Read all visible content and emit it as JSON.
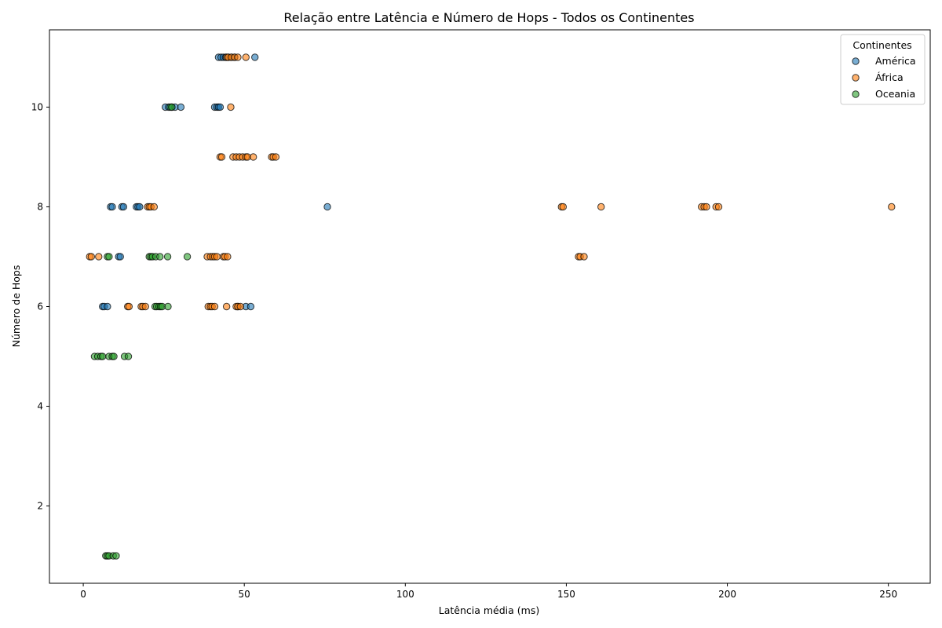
{
  "chart_data": {
    "type": "scatter",
    "title": "Relação entre Latência e Número de Hops - Todos os Continentes",
    "xlabel": "Latência média (ms)",
    "ylabel": "Número de Hops",
    "xlim": [
      -10.5,
      263
    ],
    "ylim": [
      0.45,
      11.55
    ],
    "xticks": [
      0,
      50,
      100,
      150,
      200,
      250
    ],
    "yticks": [
      2,
      4,
      6,
      8,
      10
    ],
    "grid": false,
    "legend": {
      "title": "Continentes",
      "position": "top-right"
    },
    "series": [
      {
        "name": "América",
        "color": "#1f77b4",
        "points": [
          [
            42.0,
            11
          ],
          [
            42.8,
            11
          ],
          [
            43.5,
            11
          ],
          [
            44.2,
            11
          ],
          [
            45.0,
            11
          ],
          [
            46.0,
            11
          ],
          [
            47.0,
            11
          ],
          [
            53.3,
            11
          ],
          [
            25.5,
            10
          ],
          [
            26.5,
            10
          ],
          [
            27.5,
            10
          ],
          [
            28.5,
            10
          ],
          [
            30.3,
            10
          ],
          [
            40.8,
            10
          ],
          [
            41.5,
            10
          ],
          [
            42.0,
            10
          ],
          [
            42.5,
            10
          ],
          [
            8.5,
            8
          ],
          [
            9.0,
            8
          ],
          [
            12.0,
            8
          ],
          [
            12.5,
            8
          ],
          [
            16.5,
            8
          ],
          [
            17.0,
            8
          ],
          [
            17.5,
            8
          ],
          [
            75.8,
            8
          ],
          [
            11.0,
            7
          ],
          [
            11.5,
            7
          ],
          [
            6.0,
            6
          ],
          [
            6.5,
            6
          ],
          [
            7.5,
            6
          ],
          [
            48.0,
            6
          ],
          [
            50.5,
            6
          ],
          [
            52.0,
            6
          ]
        ]
      },
      {
        "name": "África",
        "color": "#ff7f0e",
        "points": [
          [
            44.5,
            11
          ],
          [
            45.0,
            11
          ],
          [
            46.0,
            11
          ],
          [
            47.0,
            11
          ],
          [
            48.0,
            11
          ],
          [
            50.5,
            11
          ],
          [
            45.8,
            10
          ],
          [
            42.5,
            9
          ],
          [
            43.0,
            9
          ],
          [
            46.5,
            9
          ],
          [
            47.5,
            9
          ],
          [
            48.5,
            9
          ],
          [
            49.5,
            9
          ],
          [
            50.5,
            9
          ],
          [
            51.0,
            9
          ],
          [
            52.8,
            9
          ],
          [
            58.5,
            9
          ],
          [
            59.0,
            9
          ],
          [
            59.8,
            9
          ],
          [
            20.0,
            8
          ],
          [
            20.5,
            8
          ],
          [
            21.0,
            8
          ],
          [
            22.0,
            8
          ],
          [
            148.5,
            8
          ],
          [
            149.0,
            8
          ],
          [
            160.8,
            8
          ],
          [
            192.0,
            8
          ],
          [
            192.8,
            8
          ],
          [
            193.5,
            8
          ],
          [
            196.5,
            8
          ],
          [
            197.3,
            8
          ],
          [
            251.0,
            8
          ],
          [
            2.0,
            7
          ],
          [
            2.5,
            7
          ],
          [
            4.8,
            7
          ],
          [
            38.5,
            7
          ],
          [
            39.5,
            7
          ],
          [
            40.2,
            7
          ],
          [
            40.8,
            7
          ],
          [
            41.5,
            7
          ],
          [
            43.5,
            7
          ],
          [
            44.0,
            7
          ],
          [
            44.8,
            7
          ],
          [
            153.8,
            7
          ],
          [
            154.3,
            7
          ],
          [
            155.5,
            7
          ],
          [
            13.8,
            6
          ],
          [
            14.2,
            6
          ],
          [
            18.0,
            6
          ],
          [
            18.5,
            6
          ],
          [
            19.3,
            6
          ],
          [
            38.8,
            6
          ],
          [
            39.5,
            6
          ],
          [
            40.0,
            6
          ],
          [
            40.8,
            6
          ],
          [
            44.5,
            6
          ],
          [
            47.5,
            6
          ],
          [
            48.0,
            6
          ],
          [
            48.8,
            6
          ]
        ]
      },
      {
        "name": "Oceania",
        "color": "#2ca02c",
        "points": [
          [
            27.0,
            10
          ],
          [
            27.5,
            10
          ],
          [
            7.5,
            7
          ],
          [
            8.0,
            7
          ],
          [
            20.5,
            7
          ],
          [
            21.0,
            7
          ],
          [
            21.5,
            7
          ],
          [
            22.5,
            7
          ],
          [
            23.8,
            7
          ],
          [
            26.2,
            7
          ],
          [
            32.3,
            7
          ],
          [
            22.3,
            6
          ],
          [
            22.8,
            6
          ],
          [
            23.5,
            6
          ],
          [
            24.0,
            6
          ],
          [
            24.5,
            6
          ],
          [
            26.3,
            6
          ],
          [
            3.5,
            5
          ],
          [
            4.5,
            5
          ],
          [
            5.5,
            5
          ],
          [
            6.0,
            5
          ],
          [
            8.0,
            5
          ],
          [
            9.0,
            5
          ],
          [
            9.5,
            5
          ],
          [
            12.8,
            5
          ],
          [
            14.0,
            5
          ],
          [
            7.0,
            1
          ],
          [
            7.5,
            1
          ],
          [
            8.0,
            1
          ],
          [
            9.3,
            1
          ],
          [
            10.2,
            1
          ]
        ]
      }
    ]
  }
}
